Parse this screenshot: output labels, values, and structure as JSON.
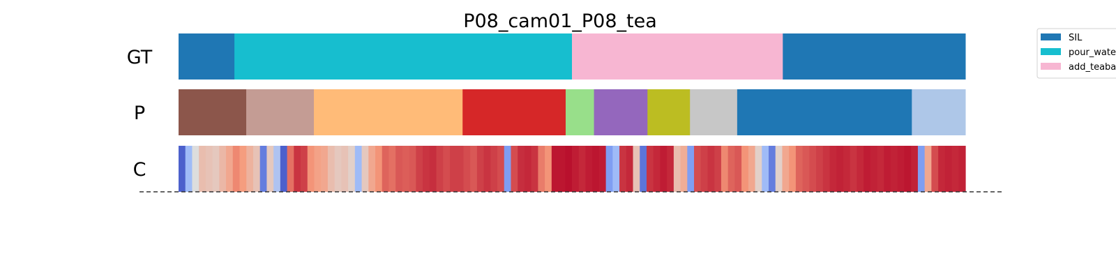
{
  "chart_data": {
    "type": "heatmap",
    "title": "P08_cam01_P08_tea",
    "x_range": [
      0,
      1
    ],
    "rows": [
      {
        "label": "GT",
        "segments": [
          {
            "start": 0.0,
            "end": 0.071,
            "color": "#1f77b4"
          },
          {
            "start": 0.071,
            "end": 0.5,
            "color": "#17becf"
          },
          {
            "start": 0.5,
            "end": 0.768,
            "color": "#f7b6d2"
          },
          {
            "start": 0.768,
            "end": 1.0,
            "color": "#1f77b4"
          }
        ]
      },
      {
        "label": "P",
        "segments": [
          {
            "start": 0.0,
            "end": 0.086,
            "color": "#8c564b"
          },
          {
            "start": 0.086,
            "end": 0.172,
            "color": "#c49c94"
          },
          {
            "start": 0.172,
            "end": 0.361,
            "color": "#ffbb78"
          },
          {
            "start": 0.361,
            "end": 0.492,
            "color": "#d62728"
          },
          {
            "start": 0.492,
            "end": 0.528,
            "color": "#98df8a"
          },
          {
            "start": 0.528,
            "end": 0.596,
            "color": "#9467bd"
          },
          {
            "start": 0.596,
            "end": 0.65,
            "color": "#bcbd22"
          },
          {
            "start": 0.65,
            "end": 0.71,
            "color": "#c7c7c7"
          },
          {
            "start": 0.71,
            "end": 0.932,
            "color": "#1f77b4"
          },
          {
            "start": 0.932,
            "end": 1.0,
            "color": "#aec7e8"
          }
        ]
      },
      {
        "label": "C",
        "gradient": true,
        "values": [
          0.05,
          0.3,
          0.5,
          0.62,
          0.6,
          0.58,
          0.64,
          0.7,
          0.78,
          0.74,
          0.66,
          0.6,
          0.12,
          0.58,
          0.35,
          0.05,
          0.82,
          0.92,
          0.9,
          0.76,
          0.72,
          0.7,
          0.62,
          0.58,
          0.6,
          0.55,
          0.3,
          0.58,
          0.7,
          0.76,
          0.84,
          0.82,
          0.86,
          0.85,
          0.86,
          0.9,
          0.92,
          0.93,
          0.9,
          0.88,
          0.9,
          0.9,
          0.88,
          0.86,
          0.9,
          0.92,
          0.9,
          0.88,
          0.2,
          0.88,
          0.93,
          0.94,
          0.92,
          0.8,
          0.76,
          0.97,
          0.97,
          0.98,
          0.96,
          0.94,
          0.96,
          0.97,
          0.96,
          0.2,
          0.3,
          0.92,
          0.94,
          0.6,
          0.1,
          0.92,
          0.94,
          0.96,
          0.94,
          0.62,
          0.68,
          0.2,
          0.88,
          0.9,
          0.92,
          0.9,
          0.78,
          0.84,
          0.86,
          0.76,
          0.7,
          0.55,
          0.3,
          0.12,
          0.55,
          0.7,
          0.76,
          0.84,
          0.86,
          0.88,
          0.9,
          0.92,
          0.94,
          0.95,
          0.94,
          0.92,
          0.94,
          0.96,
          0.95,
          0.94,
          0.96,
          0.95,
          0.96,
          0.97,
          0.95,
          0.2,
          0.7,
          0.88,
          0.94,
          0.95,
          0.94,
          0.95
        ]
      }
    ],
    "legend": {
      "placement": "top-right",
      "entries": [
        {
          "label": "SIL",
          "color": "#1f77b4"
        },
        {
          "label": "pour_water",
          "color": "#17becf"
        },
        {
          "label": "add_teabag",
          "color": "#f7b6d2"
        }
      ]
    },
    "grid": false
  }
}
